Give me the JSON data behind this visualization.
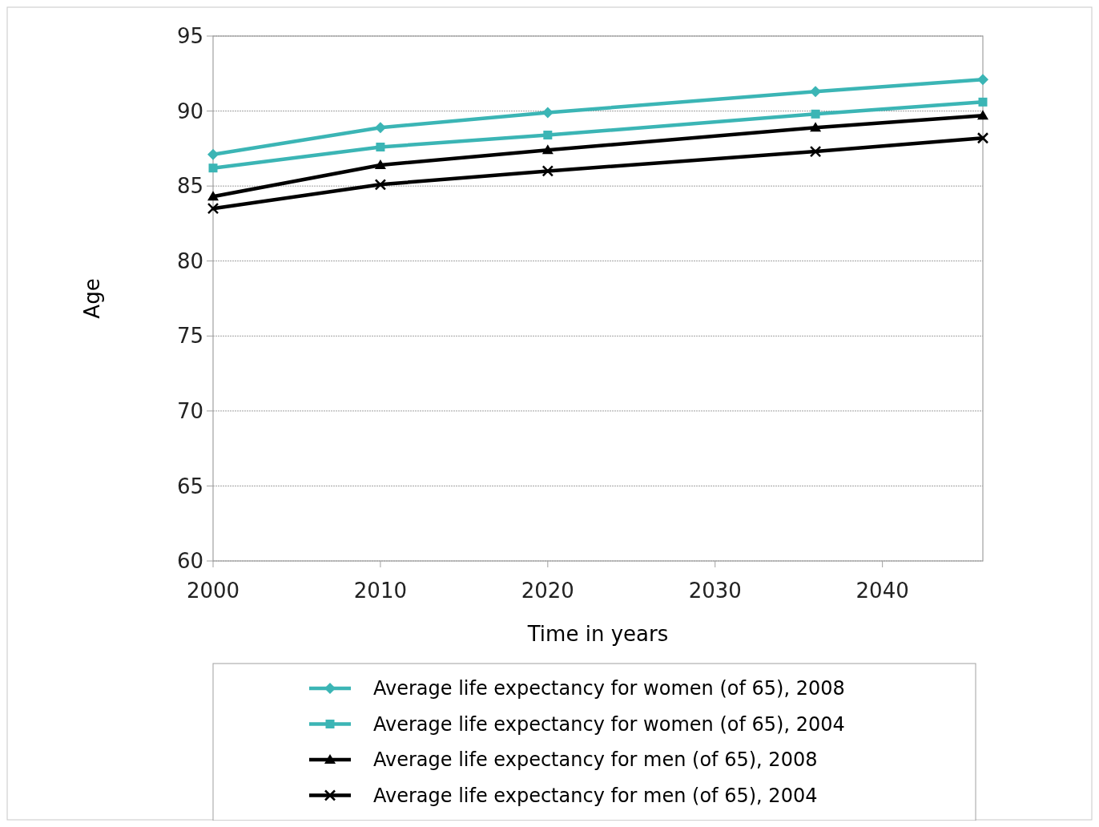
{
  "chart_data": {
    "type": "line",
    "xlabel": "Time in years",
    "ylabel": "Age",
    "x": [
      2000,
      2010,
      2020,
      2036,
      2046
    ],
    "xlim": [
      2000,
      2046
    ],
    "xticks": [
      2000,
      2010,
      2020,
      2030,
      2040
    ],
    "ylim": [
      60,
      95
    ],
    "yticks": [
      60,
      65,
      70,
      75,
      80,
      85,
      90,
      95
    ],
    "grid": "y",
    "legend": "bottom",
    "line_style": "solid",
    "series": [
      {
        "name": "Average life expectancy for women (of 65), 2008",
        "color": "#3bb5b5",
        "marker": "diamond",
        "values": [
          87.1,
          88.9,
          89.9,
          91.3,
          92.1
        ]
      },
      {
        "name": "Average life expectancy for women (of 65), 2004",
        "color": "#3bb5b5",
        "marker": "square",
        "values": [
          86.2,
          87.6,
          88.4,
          89.8,
          90.6
        ]
      },
      {
        "name": "Average life expectancy for men (of 65), 2008",
        "color": "#000000",
        "marker": "triangle",
        "values": [
          84.3,
          86.4,
          87.4,
          88.9,
          89.7
        ]
      },
      {
        "name": "Average life expectancy for men (of 65), 2004",
        "color": "#000000",
        "marker": "cross",
        "values": [
          83.5,
          85.1,
          86.0,
          87.3,
          88.2
        ]
      }
    ]
  }
}
